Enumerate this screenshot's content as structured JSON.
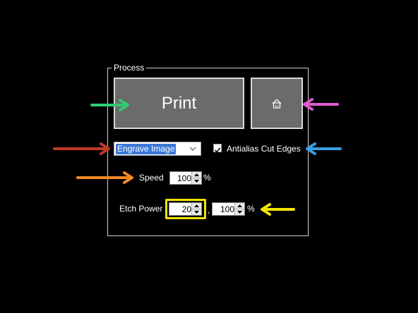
{
  "process": {
    "title": "Process",
    "print_label": "Print",
    "home_label": "xy",
    "mode_select_value": "Engrave Image",
    "antialias_label": "Antialias Cut Edges",
    "antialias_checked": true,
    "speed_label": "Speed",
    "speed_value": "100",
    "speed_unit": "%",
    "etch_power_label": "Etch Power",
    "etch_power_min": "20",
    "etch_power_separator": ",",
    "etch_power_max": "100",
    "etch_power_unit": "%"
  },
  "annotations": {
    "colors": {
      "green": "#2ecc71",
      "pink": "#e05ccf",
      "red": "#c0392b",
      "blue": "#3aa0e0",
      "orange": "#f08a24",
      "yellow": "#f2e400"
    }
  }
}
